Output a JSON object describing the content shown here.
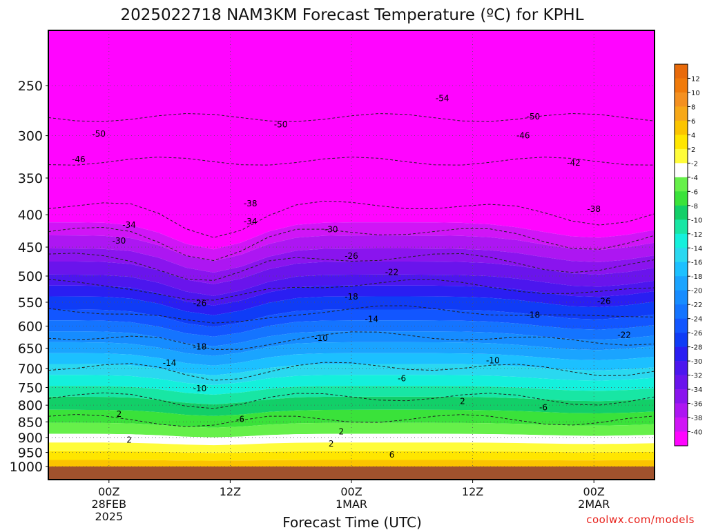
{
  "chart_data": {
    "type": "heatmap",
    "title": "2025022718 NAM3KM Forecast Temperature (ºC) for KPHL",
    "xlabel": "Forecast Time (UTC)",
    "ylabel": "",
    "ylim": [
      1000,
      200
    ],
    "y_scale": "log",
    "y_ticks": [
      250,
      300,
      350,
      400,
      450,
      500,
      550,
      600,
      650,
      700,
      750,
      800,
      850,
      900,
      950,
      1000
    ],
    "x_ticks": [
      {
        "time": "2025-02-28T00:00Z",
        "lines": [
          "00Z",
          "28FEB",
          "2025"
        ]
      },
      {
        "time": "2025-02-28T12:00Z",
        "lines": [
          "12Z"
        ]
      },
      {
        "time": "2025-03-01T00:00Z",
        "lines": [
          "00Z",
          "1MAR"
        ]
      },
      {
        "time": "2025-03-01T12:00Z",
        "lines": [
          "12Z"
        ]
      },
      {
        "time": "2025-03-02T00:00Z",
        "lines": [
          "00Z",
          "2MAR"
        ]
      }
    ],
    "xlim": [
      "2025-02-27T18:00Z",
      "2025-03-02T06:00Z"
    ],
    "grid": true,
    "legend": {
      "placement": "right",
      "labels": [
        "12",
        "10",
        "8",
        "6",
        "4",
        "2",
        "-2",
        "-4",
        "-6",
        "-8",
        "-10",
        "-12",
        "-14",
        "-16",
        "-18",
        "-20",
        "-22",
        "-24",
        "-26",
        "-28",
        "-30",
        "-32",
        "-34",
        "-36",
        "-38",
        "-40"
      ],
      "colors": [
        "#e86a0a",
        "#f07a0a",
        "#f49020",
        "#f7a818",
        "#fbc400",
        "#ffe600",
        "#fffc3a",
        "#ffffff",
        "#66f04a",
        "#3ae23a",
        "#12cf68",
        "#18e6a4",
        "#14f0dc",
        "#2ad8f0",
        "#1cc0ff",
        "#1aa4ff",
        "#168cff",
        "#1474ff",
        "#1256ff",
        "#0f3cf6",
        "#2a1ef2",
        "#4c16ee",
        "#6a14ec",
        "#8a14ee",
        "#ad16f2",
        "#d015f6",
        "#ff05ff"
      ]
    },
    "contour_labels": [
      {
        "time": "2025-03-01T09:00Z",
        "p": 262,
        "value": "-54"
      },
      {
        "time": "2025-03-01T18:00Z",
        "p": 280,
        "value": "-50"
      },
      {
        "time": "2025-02-28T17:00Z",
        "p": 288,
        "value": "-50"
      },
      {
        "time": "2025-02-27T23:00Z",
        "p": 298,
        "value": "-50"
      },
      {
        "time": "2025-03-01T17:00Z",
        "p": 300,
        "value": "-46"
      },
      {
        "time": "2025-02-27T21:00Z",
        "p": 327,
        "value": "-46"
      },
      {
        "time": "2025-03-01T22:00Z",
        "p": 331,
        "value": "-42"
      },
      {
        "time": "2025-02-28T14:00Z",
        "p": 384,
        "value": "-38"
      },
      {
        "time": "2025-03-02T00:00Z",
        "p": 392,
        "value": "-38"
      },
      {
        "time": "2025-02-28T14:00Z",
        "p": 410,
        "value": "-34"
      },
      {
        "time": "2025-02-28T02:00Z",
        "p": 415,
        "value": "-34"
      },
      {
        "time": "2025-02-28T22:00Z",
        "p": 422,
        "value": "-30"
      },
      {
        "time": "2025-02-28T01:00Z",
        "p": 440,
        "value": "-30"
      },
      {
        "time": "2025-03-01T00:00Z",
        "p": 465,
        "value": "-26"
      },
      {
        "time": "2025-03-01T04:00Z",
        "p": 493,
        "value": "-22"
      },
      {
        "time": "2025-03-01T00:00Z",
        "p": 539,
        "value": "-18"
      },
      {
        "time": "2025-02-28T09:00Z",
        "p": 552,
        "value": "-26"
      },
      {
        "time": "2025-03-02T01:00Z",
        "p": 548,
        "value": "-26"
      },
      {
        "time": "2025-03-01T18:00Z",
        "p": 576,
        "value": "-18"
      },
      {
        "time": "2025-03-01T02:00Z",
        "p": 585,
        "value": "-14"
      },
      {
        "time": "2025-03-02T03:00Z",
        "p": 620,
        "value": "-22"
      },
      {
        "time": "2025-02-28T21:00Z",
        "p": 627,
        "value": "-10"
      },
      {
        "time": "2025-02-28T09:00Z",
        "p": 647,
        "value": "-18"
      },
      {
        "time": "2025-03-01T14:00Z",
        "p": 680,
        "value": "-10"
      },
      {
        "time": "2025-02-28T06:00Z",
        "p": 686,
        "value": "-14"
      },
      {
        "time": "2025-03-01T05:00Z",
        "p": 726,
        "value": "-6"
      },
      {
        "time": "2025-02-28T09:00Z",
        "p": 753,
        "value": "-10"
      },
      {
        "time": "2025-03-01T11:00Z",
        "p": 789,
        "value": "2"
      },
      {
        "time": "2025-03-01T19:00Z",
        "p": 807,
        "value": "-6"
      },
      {
        "time": "2025-02-28T01:00Z",
        "p": 826,
        "value": "2"
      },
      {
        "time": "2025-02-28T13:00Z",
        "p": 842,
        "value": "-6"
      },
      {
        "time": "2025-02-28T23:00Z",
        "p": 881,
        "value": "2"
      },
      {
        "time": "2025-02-28T02:00Z",
        "p": 908,
        "value": "2"
      },
      {
        "time": "2025-02-28T22:00Z",
        "p": 920,
        "value": "2"
      },
      {
        "time": "2025-03-01T04:00Z",
        "p": 958,
        "value": "6"
      }
    ]
  },
  "credit": "coolwx.com/models"
}
